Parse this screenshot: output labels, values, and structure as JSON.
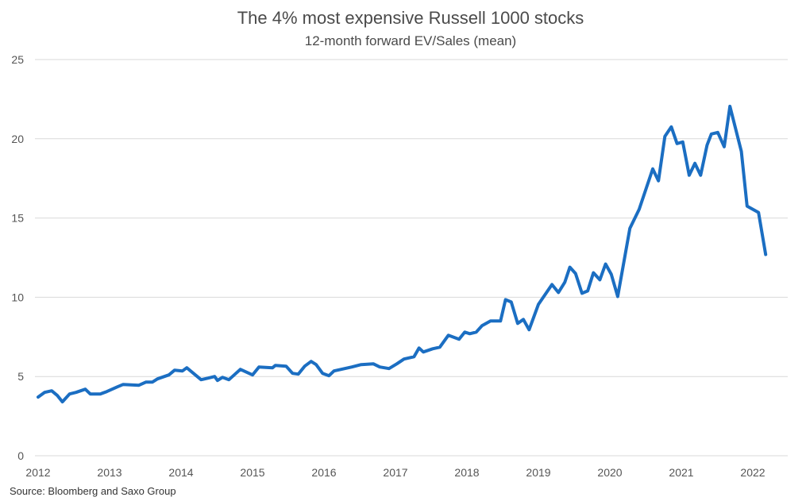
{
  "chart_data": {
    "type": "line",
    "title": "The 4% most expensive Russell 1000 stocks",
    "subtitle": "12-month forward EV/Sales (mean)",
    "xlabel": "",
    "ylabel": "",
    "xlim": [
      2012,
      2022.6
    ],
    "ylim": [
      0,
      25
    ],
    "grid": true,
    "x_ticks": [
      "2012",
      "2013",
      "2014",
      "2015",
      "2016",
      "2017",
      "2018",
      "2019",
      "2020",
      "2021",
      "2022"
    ],
    "y_ticks": [
      "0",
      "5",
      "10",
      "15",
      "20",
      "25"
    ],
    "series": [
      {
        "name": "EV/Sales",
        "color": "#1b6ec2",
        "x": [
          2012.0,
          2012.09,
          2012.19,
          2012.27,
          2012.34,
          2012.44,
          2012.53,
          2012.66,
          2012.73,
          2012.87,
          2012.96,
          2013.11,
          2013.19,
          2013.41,
          2013.51,
          2013.6,
          2013.67,
          2013.83,
          2013.91,
          2014.02,
          2014.08,
          2014.28,
          2014.38,
          2014.47,
          2014.51,
          2014.58,
          2014.67,
          2014.83,
          2015.0,
          2015.09,
          2015.28,
          2015.32,
          2015.47,
          2015.56,
          2015.64,
          2015.73,
          2015.82,
          2015.89,
          2015.98,
          2016.07,
          2016.14,
          2016.39,
          2016.52,
          2016.69,
          2016.78,
          2016.91,
          2017.02,
          2017.12,
          2017.26,
          2017.33,
          2017.39,
          2017.52,
          2017.62,
          2017.74,
          2017.89,
          2017.97,
          2018.04,
          2018.13,
          2018.21,
          2018.33,
          2018.47,
          2018.54,
          2018.62,
          2018.71,
          2018.79,
          2018.87,
          2019.0,
          2019.19,
          2019.28,
          2019.37,
          2019.44,
          2019.52,
          2019.61,
          2019.69,
          2019.77,
          2019.86,
          2019.94,
          2020.02,
          2020.11,
          2020.28,
          2020.41,
          2020.6,
          2020.68,
          2020.77,
          2020.86,
          2020.94,
          2021.02,
          2021.11,
          2021.19,
          2021.27,
          2021.36,
          2021.42,
          2021.51,
          2021.6,
          2021.68,
          2021.84,
          2021.92,
          2022.08,
          2022.18
        ],
        "y": [
          3.7,
          4.0,
          4.1,
          3.8,
          3.4,
          3.9,
          4.0,
          4.2,
          3.9,
          3.9,
          4.05,
          4.35,
          4.5,
          4.45,
          4.65,
          4.65,
          4.85,
          5.1,
          5.4,
          5.35,
          5.55,
          4.8,
          4.9,
          5.0,
          4.75,
          4.95,
          4.8,
          5.45,
          5.1,
          5.6,
          5.55,
          5.7,
          5.65,
          5.2,
          5.15,
          5.65,
          5.95,
          5.75,
          5.2,
          5.05,
          5.35,
          5.6,
          5.75,
          5.8,
          5.6,
          5.5,
          5.8,
          6.1,
          6.25,
          6.8,
          6.55,
          6.75,
          6.85,
          7.6,
          7.35,
          7.8,
          7.7,
          7.8,
          8.2,
          8.5,
          8.5,
          9.85,
          9.7,
          8.35,
          8.6,
          7.95,
          9.55,
          10.8,
          10.3,
          10.95,
          11.9,
          11.5,
          10.25,
          10.4,
          11.55,
          11.1,
          12.1,
          11.45,
          10.05,
          14.35,
          15.55,
          18.1,
          17.35,
          20.15,
          20.75,
          19.7,
          19.8,
          17.7,
          18.45,
          17.7,
          19.6,
          20.3,
          20.4,
          19.5,
          22.05,
          19.2,
          15.75,
          15.35,
          12.7
        ]
      }
    ],
    "source": "Source: Bloomberg and Saxo Group"
  }
}
